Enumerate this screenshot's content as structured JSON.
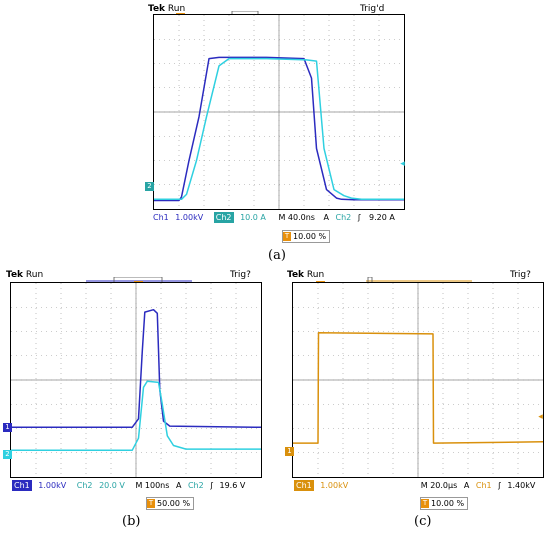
{
  "colors": {
    "ch1_dark_blue": "#2b2bbf",
    "ch2_cyan": "#2fd0e0",
    "ch1_orange": "#d9900c",
    "grid": "#9a9a9a",
    "trigger_orange": "#e8900c",
    "ch2_teal_box": "#28a4a4"
  },
  "scopes": {
    "a": {
      "header_brand": "Tek",
      "header_state": "Run",
      "header_trig": "Trig'd",
      "status": {
        "ch1": "Ch1",
        "ch1_scale": "1.00kV",
        "ch2": "Ch2",
        "ch2_scale": "10.0 A",
        "timebase": "M 40.0ns",
        "trig_src_A": "A",
        "trig_ch": "Ch2",
        "trig_slope": "ʃ",
        "trig_level": "9.20 A"
      },
      "trigger_pos": "10.00 %",
      "caption": "(a)"
    },
    "b": {
      "header_brand": "Tek",
      "header_state": "Run",
      "header_trig": "Trig?",
      "status": {
        "ch1": "Ch1",
        "ch1_scale": "1.00kV",
        "ch2": "Ch2",
        "ch2_scale": "20.0 V",
        "timebase": "M 100ns",
        "trig_src_A": "A",
        "trig_ch": "Ch2",
        "trig_slope": "ʃ",
        "trig_level": "19.6 V"
      },
      "trigger_pos": "50.00 %",
      "caption": "(b)"
    },
    "c": {
      "header_brand": "Tek",
      "header_state": "Run",
      "header_trig": "Trig?",
      "status": {
        "ch1": "Ch1",
        "ch1_scale": "1.00kV",
        "timebase": "M 20.0µs",
        "trig_src_A": "A",
        "trig_ch": "Ch1",
        "trig_slope": "ʃ",
        "trig_level": "1.40kV"
      },
      "trigger_pos": "10.00 %",
      "caption": "(c)"
    }
  },
  "chart_data": [
    {
      "type": "line",
      "title": "",
      "x_divisions": 10,
      "y_divisions": 8,
      "grid": true,
      "series": [
        {
          "color": "#2b2bbf",
          "x_div": [
            0,
            1.0,
            1.1,
            1.4,
            1.8,
            2.2,
            2.6,
            4.5,
            6.0,
            6.3,
            6.5,
            6.9,
            7.3,
            7.5,
            8.0,
            10
          ],
          "y_div": [
            -3.65,
            -3.65,
            -3.5,
            -2.0,
            -0.2,
            2.2,
            2.25,
            2.25,
            2.2,
            1.4,
            -1.5,
            -3.2,
            -3.55,
            -3.6,
            -3.62,
            -3.62
          ]
        },
        {
          "color": "#2fd0e0",
          "x_div": [
            0,
            1.1,
            1.3,
            1.7,
            2.1,
            2.6,
            3.0,
            4.5,
            6.1,
            6.5,
            6.8,
            7.2,
            7.6,
            7.9,
            8.3,
            10
          ],
          "y_div": [
            -3.6,
            -3.6,
            -3.4,
            -2.0,
            -0.2,
            1.9,
            2.2,
            2.2,
            2.15,
            2.1,
            -1.5,
            -3.2,
            -3.45,
            -3.55,
            -3.6,
            -3.6
          ]
        }
      ]
    },
    {
      "type": "line",
      "title": "",
      "x_divisions": 10,
      "y_divisions": 8,
      "grid": true,
      "series": [
        {
          "color": "#2b2bbf",
          "x_div": [
            0,
            4.85,
            5.1,
            5.25,
            5.35,
            5.7,
            5.85,
            5.95,
            6.1,
            6.35,
            10
          ],
          "y_div": [
            -1.95,
            -1.95,
            -1.6,
            1.2,
            2.8,
            2.9,
            2.75,
            -0.4,
            -1.7,
            -1.9,
            -1.95
          ]
        },
        {
          "color": "#2fd0e0",
          "x_div": [
            0,
            4.85,
            5.1,
            5.3,
            5.45,
            5.9,
            6.05,
            6.25,
            6.5,
            7.0,
            10
          ],
          "y_div": [
            -2.9,
            -2.9,
            -2.4,
            -0.3,
            -0.05,
            -0.1,
            -1.0,
            -2.3,
            -2.7,
            -2.85,
            -2.85
          ]
        }
      ]
    },
    {
      "type": "line",
      "title": "",
      "x_divisions": 10,
      "y_divisions": 8,
      "grid": true,
      "series": [
        {
          "color": "#d9900c",
          "x_div": [
            0,
            1.0,
            1.02,
            5.6,
            5.62,
            10
          ],
          "y_div": [
            -2.6,
            -2.6,
            1.95,
            1.9,
            -2.6,
            -2.55
          ]
        }
      ]
    }
  ]
}
